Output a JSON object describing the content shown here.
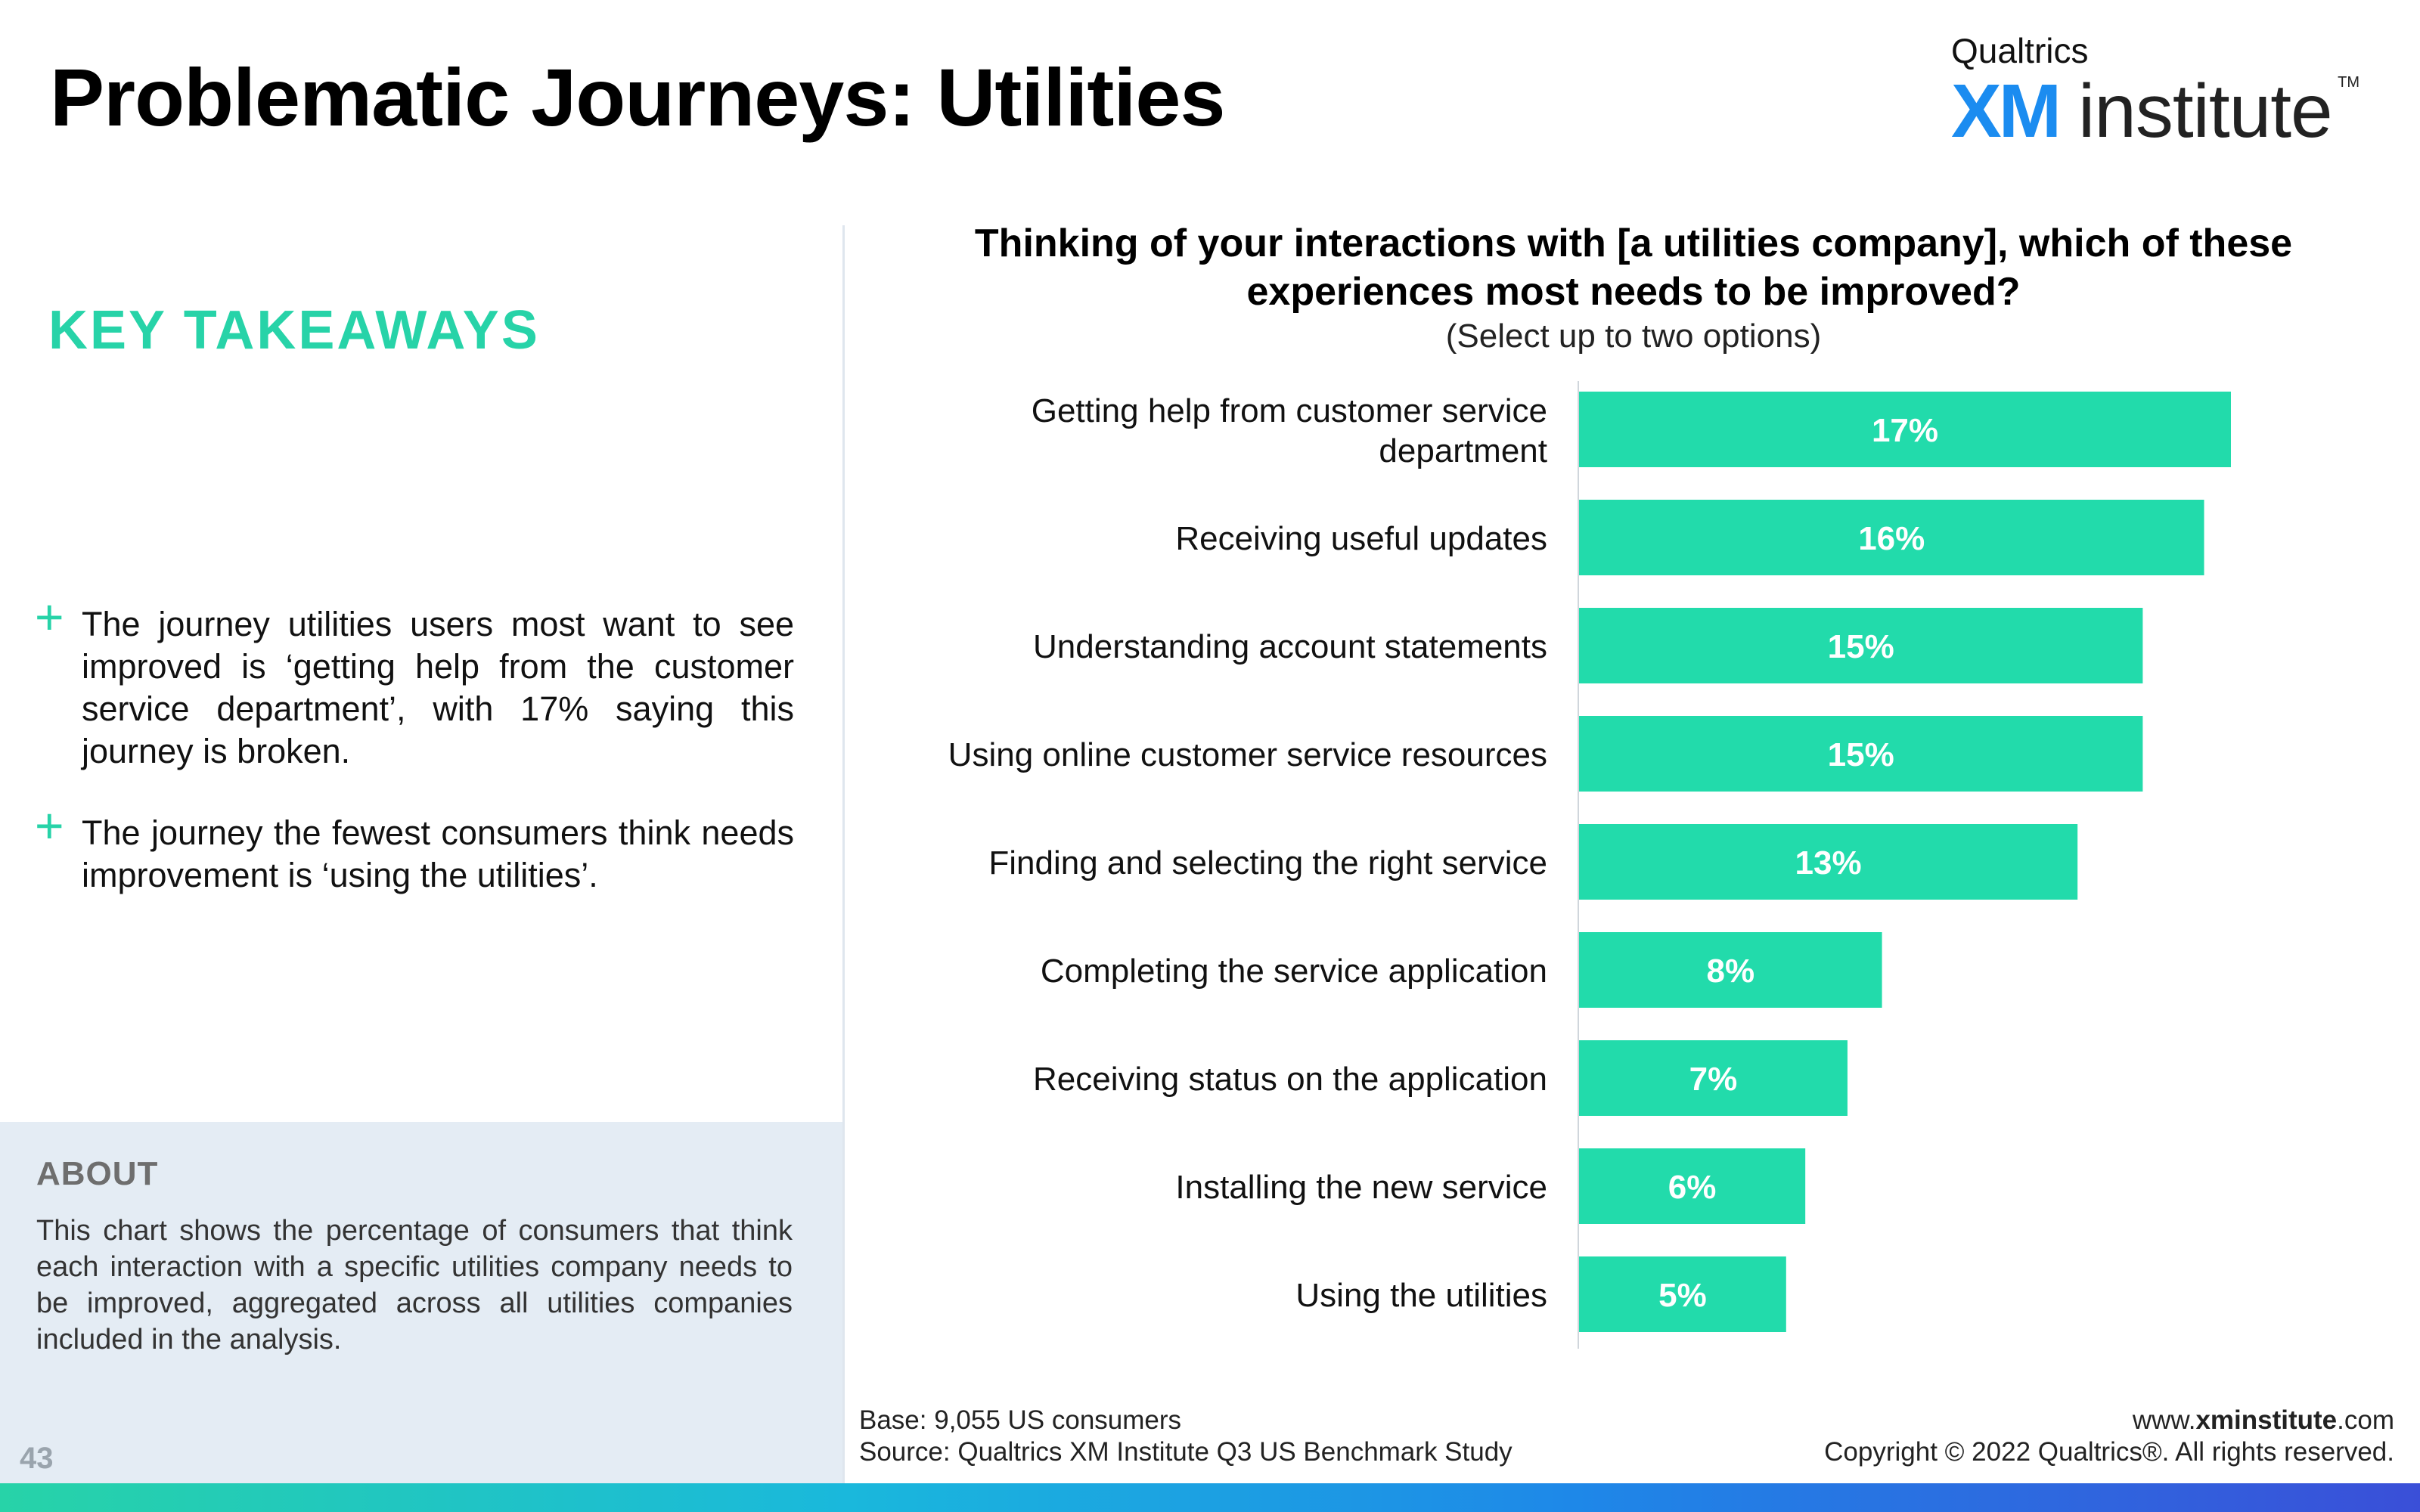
{
  "header": {
    "title": "Problematic Journeys: Utilities",
    "logo": {
      "brand": "Qualtrics",
      "xm": "XM",
      "name": "institute",
      "tm": "TM"
    }
  },
  "left": {
    "key_title": "KEY TAKEAWAYS",
    "takeaways": [
      "The journey utilities users most want to see improved is ‘getting help from the customer service department’, with 17% saying this journey is broken.",
      "The journey the fewest consumers think needs improvement is ‘using the utilities’."
    ],
    "about_title": "ABOUT",
    "about_text": "This chart shows the percentage of consumers that think each interaction with a specific utilities company needs to be improved, aggregated across all utilities companies included in the analysis.",
    "page_number": "43"
  },
  "footer": {
    "base": "Base: 9,055 US consumers",
    "source": "Source: Qualtrics XM Institute Q3 US Benchmark Study",
    "url_prefix": "www.",
    "url_bold": "xminstitute",
    "url_suffix": ".com",
    "copyright": "Copyright © 2022 Qualtrics®. All rights reserved."
  },
  "colors": {
    "accent": "#27d3a8",
    "bar": "#22dbab",
    "about_bg": "#e4ecf4"
  },
  "chart_data": {
    "type": "bar",
    "orientation": "horizontal",
    "title": "Thinking of your interactions with [a utilities company], which of these experiences most needs to be improved?",
    "subtitle": "(Select up to two options)",
    "categories": [
      "Getting help from customer service department",
      "Receiving useful updates",
      "Understanding account statements",
      "Using online customer service resources",
      "Finding and selecting the right service",
      "Completing the service application",
      "Receiving status on the application",
      "Installing the new service",
      "Using the utilities"
    ],
    "values": [
      17.0,
      16.3,
      14.7,
      14.7,
      13.0,
      7.9,
      7.0,
      5.9,
      5.4
    ],
    "value_labels": [
      "17%",
      "16%",
      "15%",
      "15%",
      "13%",
      "8%",
      "7%",
      "6%",
      "5%"
    ],
    "unit": "%",
    "xlim": [
      0,
      17
    ],
    "grid": false,
    "legend": "none"
  }
}
